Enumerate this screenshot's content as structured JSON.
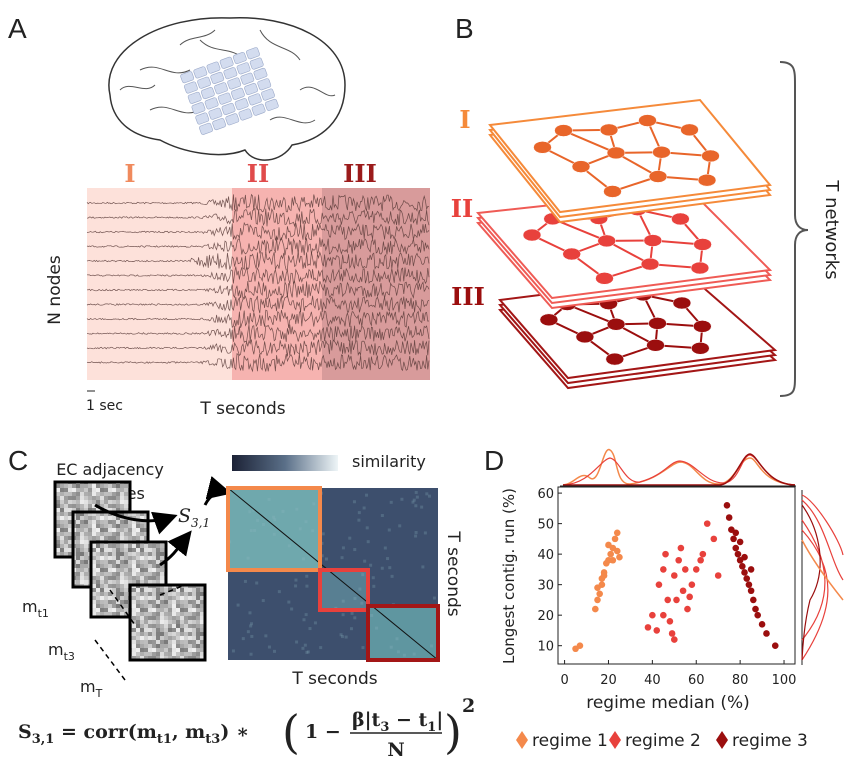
{
  "panel_a": {
    "label": "A",
    "regimes": [
      "I",
      "II",
      "III"
    ],
    "y_label": "N nodes",
    "scale_label": "1 sec",
    "x_label": "T seconds"
  },
  "panel_b": {
    "label": "B",
    "layers": [
      "I",
      "II",
      "III"
    ],
    "brace_label": "T networks"
  },
  "panel_c": {
    "label": "C",
    "matrices_label": [
      "EC adjacency",
      "matrices"
    ],
    "similarity_symbol": "S",
    "similarity_sub": "3,1",
    "colorbar_label": "similarity",
    "y_label": "T seconds",
    "x_label": "T seconds",
    "matrix_labels": [
      {
        "base": "m",
        "sub": "t1"
      },
      {
        "base": "m",
        "sub": "t3"
      },
      {
        "base": "m",
        "sub": "T"
      }
    ],
    "formula": {
      "lead": "S",
      "lead_sub": "3,1",
      "rhs": " = corr(m",
      "sub1": "t1",
      "comma": ", m",
      "sub2": "t3",
      "mid": ") ∗ ",
      "open": "(",
      "one": "1 −",
      "num": "β|t",
      "num_sub1": "3",
      "num_mid": " − t",
      "num_sub2": "1",
      "num_end": "|",
      "den": "N",
      "close": ")",
      "exp": "2"
    }
  },
  "chart_data": {
    "type": "scatter",
    "panel_label": "D",
    "x_label": "regime median (%)",
    "y_label": "Longest contig. run (%)",
    "xlim": [
      -3,
      105
    ],
    "ylim": [
      4,
      62
    ],
    "xticks": [
      0,
      20,
      40,
      60,
      80,
      100
    ],
    "yticks": [
      10,
      20,
      30,
      40,
      50,
      60
    ],
    "series": [
      {
        "name": "regime 1",
        "color": "#f4894b",
        "x": [
          5,
          7,
          14,
          15,
          16,
          15,
          17,
          18,
          19,
          20,
          21,
          22,
          23,
          24,
          20,
          22,
          24,
          25,
          18,
          17
        ],
        "values": [
          9,
          10,
          22,
          25,
          27,
          29,
          32,
          34,
          37,
          38,
          40,
          42,
          45,
          47,
          43,
          38,
          41,
          39,
          33,
          30
        ]
      },
      {
        "name": "regime 2",
        "color": "#e8413c",
        "x": [
          38,
          40,
          42,
          43,
          45,
          46,
          47,
          48,
          49,
          50,
          50,
          52,
          53,
          54,
          55,
          56,
          58,
          60,
          62,
          63,
          65,
          68,
          70,
          45,
          51,
          57
        ],
        "values": [
          16,
          20,
          15,
          30,
          35,
          40,
          25,
          18,
          14,
          12,
          33,
          38,
          42,
          28,
          35,
          22,
          30,
          35,
          38,
          40,
          50,
          45,
          33,
          20,
          25,
          26
        ]
      },
      {
        "name": "regime 3",
        "color": "#9b0e0e",
        "x": [
          74,
          75,
          76,
          77,
          78,
          79,
          80,
          81,
          82,
          83,
          84,
          85,
          86,
          87,
          88,
          90,
          92,
          96,
          80,
          82,
          85,
          78
        ],
        "values": [
          56,
          52,
          48,
          45,
          42,
          40,
          38,
          36,
          34,
          32,
          30,
          28,
          25,
          22,
          20,
          17,
          14,
          10,
          44,
          39,
          35,
          47
        ]
      }
    ]
  }
}
